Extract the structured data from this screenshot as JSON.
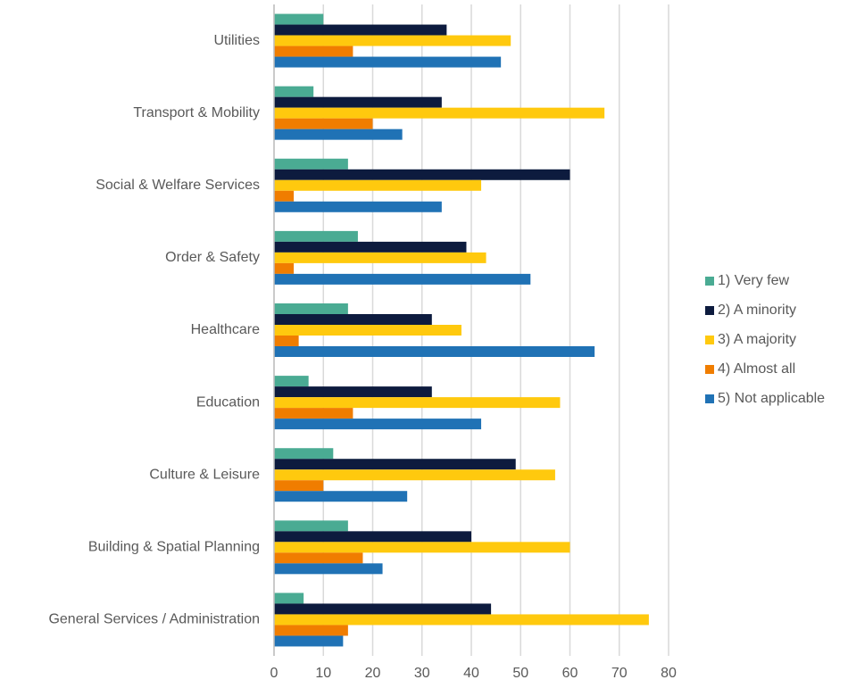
{
  "chart_data": {
    "type": "hbar",
    "categories": [
      "Utilities",
      "Transport & Mobility",
      "Social & Welfare Services",
      "Order & Safety",
      "Healthcare",
      "Education",
      "Culture & Leisure",
      "Building & Spatial Planning",
      "General Services / Administration"
    ],
    "series": [
      {
        "name": "1) Very few",
        "color": "#4aab93",
        "values": [
          10,
          8,
          15,
          17,
          15,
          7,
          12,
          15,
          6
        ]
      },
      {
        "name": "2) A minority",
        "color": "#0d1b3e",
        "values": [
          35,
          34,
          60,
          39,
          32,
          32,
          49,
          40,
          44
        ]
      },
      {
        "name": "3) A majority",
        "color": "#ffc90e",
        "values": [
          48,
          67,
          42,
          43,
          38,
          58,
          57,
          60,
          76
        ]
      },
      {
        "name": "4) Almost all",
        "color": "#f07d00",
        "values": [
          16,
          20,
          4,
          4,
          5,
          16,
          10,
          18,
          15
        ]
      },
      {
        "name": "5) Not applicable",
        "color": "#2072b5",
        "values": [
          46,
          26,
          34,
          52,
          65,
          42,
          27,
          22,
          14
        ]
      }
    ],
    "xlim": [
      0,
      80
    ],
    "xticks": [
      0,
      10,
      20,
      30,
      40,
      50,
      60,
      70,
      80
    ],
    "grid": true,
    "legend": "right"
  }
}
